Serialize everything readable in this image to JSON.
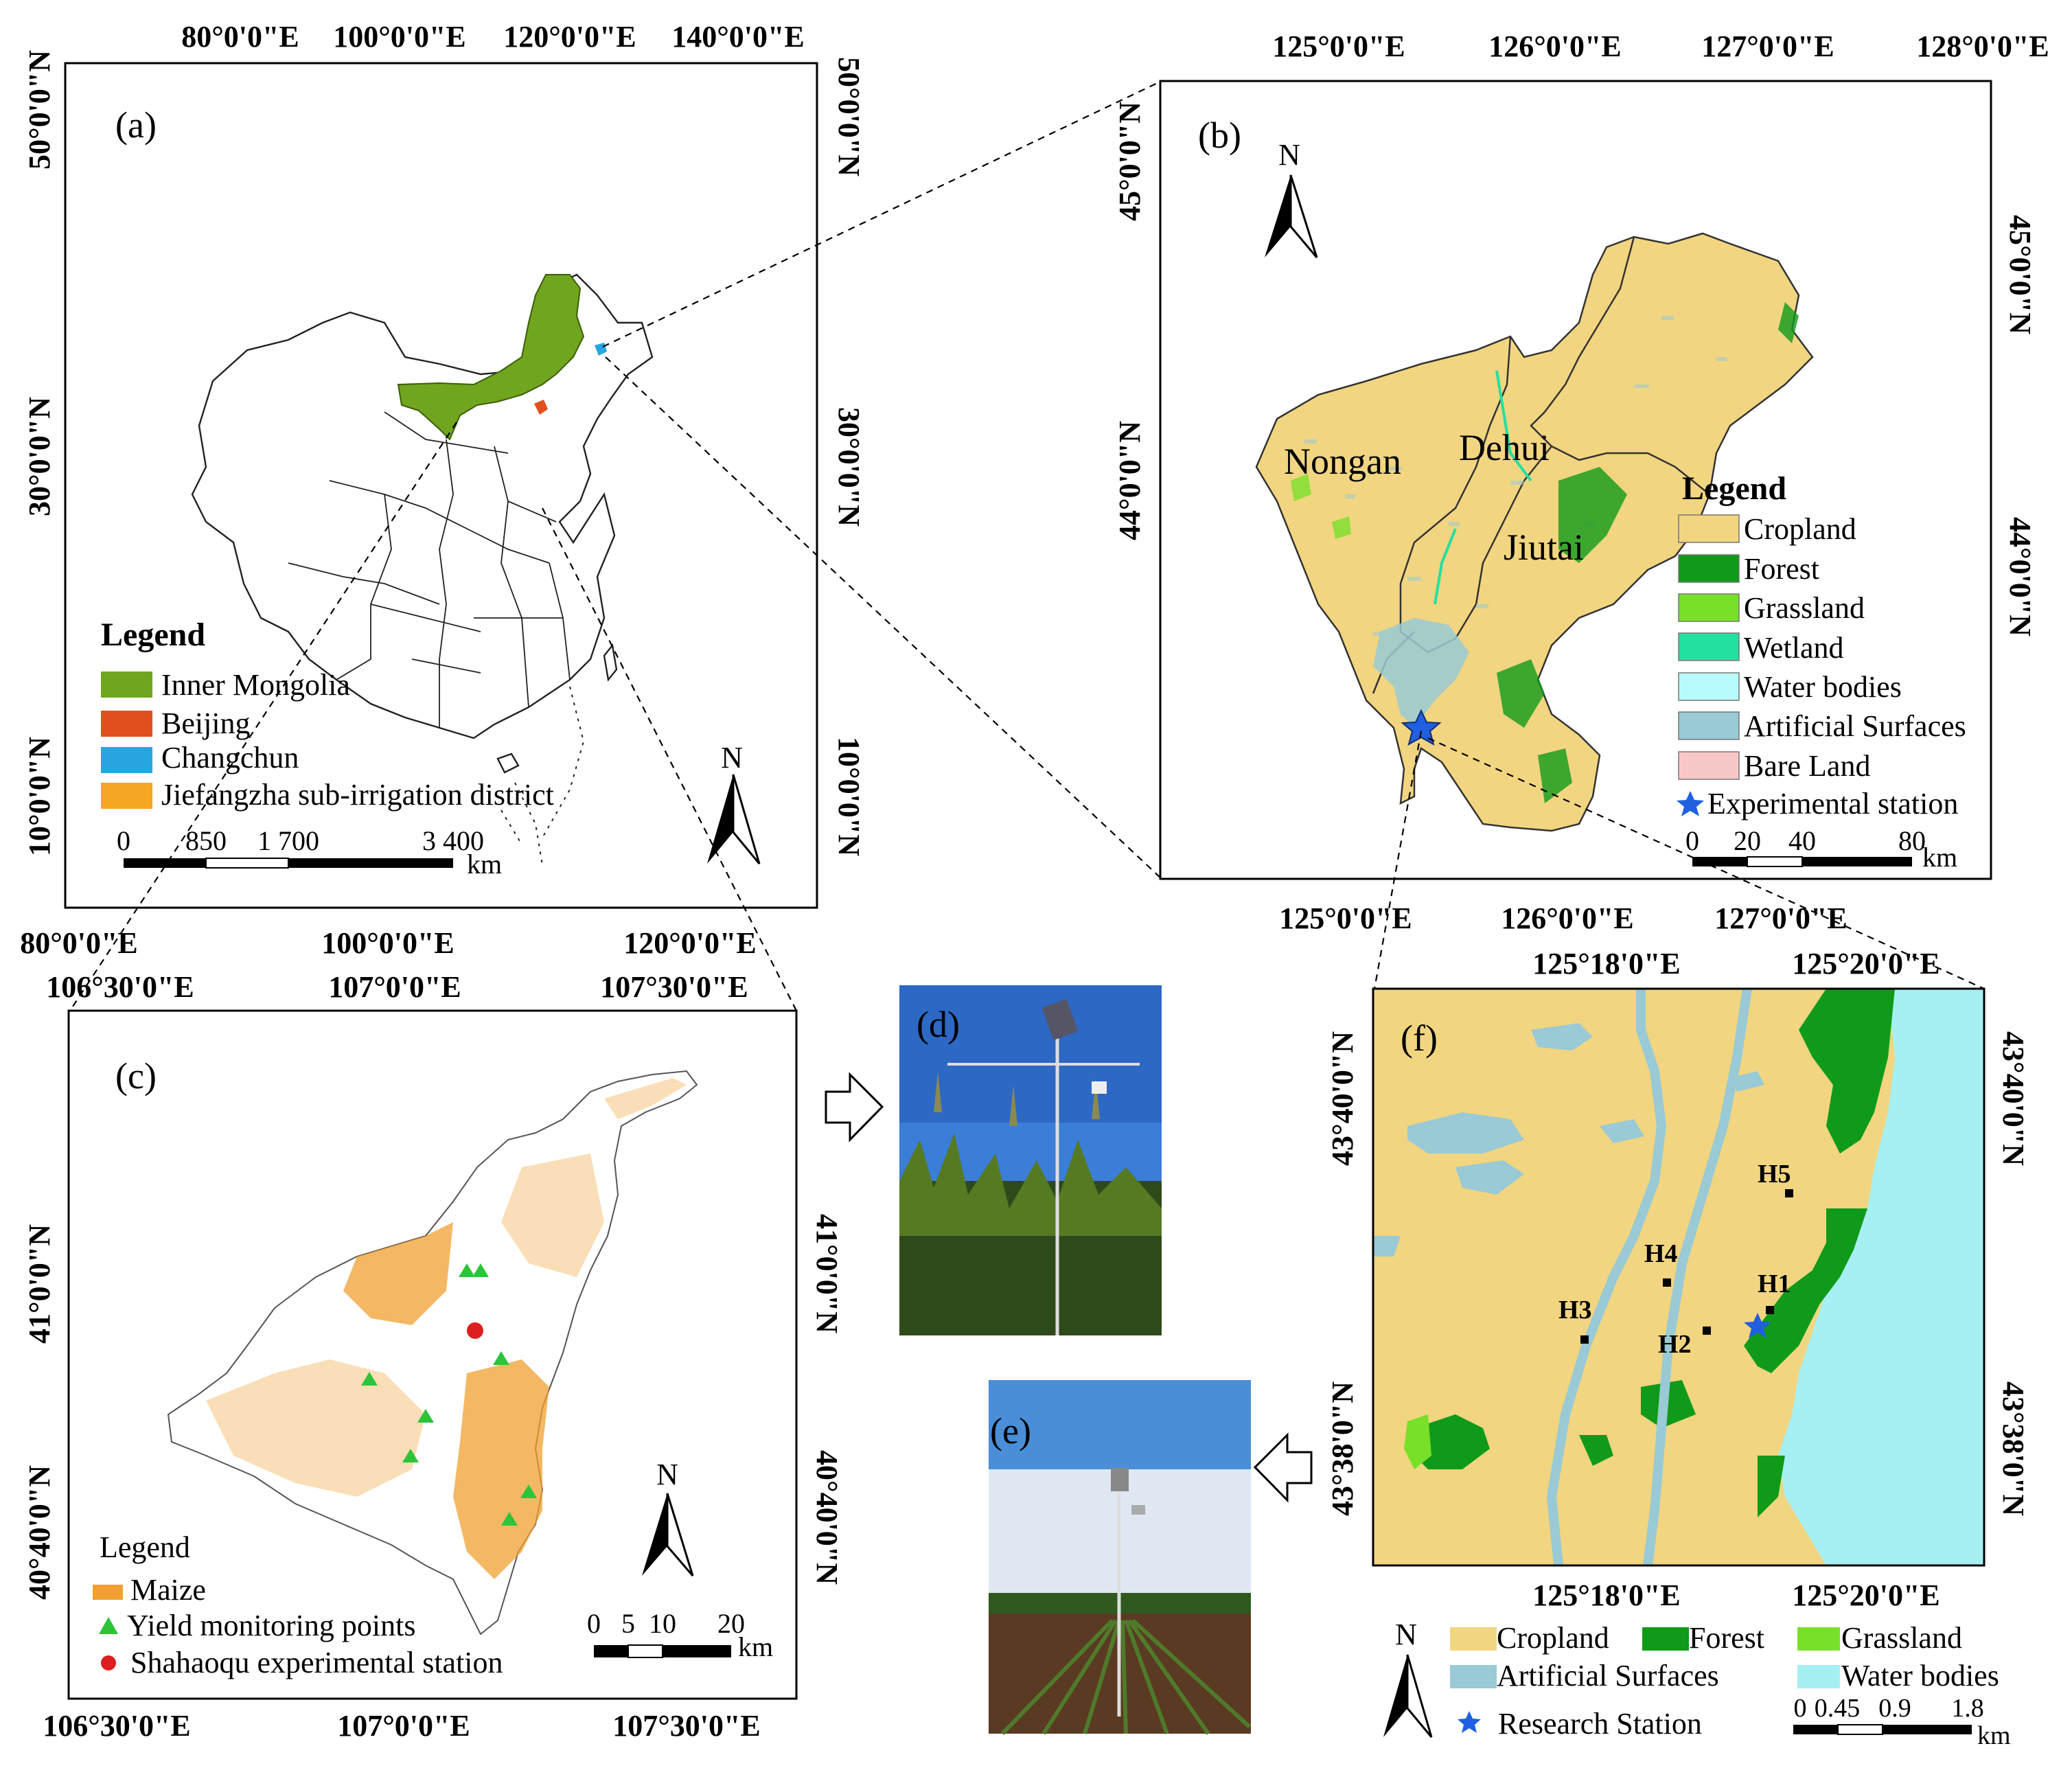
{
  "colors": {
    "inner_mongolia": "#70a51e",
    "beijing": "#e0501e",
    "changchun": "#26a5e1",
    "jiefangzha": "#f5a623",
    "cropland": "#f2d580",
    "forest": "#0f9a1a",
    "grassland": "#79e02a",
    "wetland": "#22e0a0",
    "water": "#b8fbfc",
    "artificial": "#99cad5",
    "bare": "#f8c8c8",
    "station_star": "#2060e0",
    "maize": "#f0a030",
    "yield_point": "#2ec43a",
    "shahaoqu": "#dd1f1f",
    "water_f": "#a6f0f4"
  },
  "panel_a": {
    "label": "(a)",
    "top_ticks": [
      "80°0'0\"E",
      "100°0'0\"E",
      "120°0'0\"E",
      "140°0'0\"E"
    ],
    "bottom_ticks": [
      "80°0'0\"E",
      "100°0'0\"E",
      "120°0'0\"E"
    ],
    "left_ticks": [
      "50°0'0\"N",
      "30°0'0\"N",
      "10°0'0\"N"
    ],
    "right_ticks": [
      "50°0'0\"N",
      "30°0'0\"N",
      "10°0'0\"N"
    ],
    "legend_title": "Legend",
    "legend_items": [
      "Inner Mongolia",
      "Beijing",
      "Changchun",
      "Jiefangzha sub-irrigation district"
    ],
    "legend_icons": [
      "inner-mongolia-swatch-icon",
      "beijing-swatch-icon",
      "changchun-swatch-icon",
      "jiefangzha-swatch-icon"
    ],
    "scalebar_labels": [
      "0",
      "850",
      "1 700",
      "3 400"
    ],
    "scalebar_unit": "km",
    "north": "N"
  },
  "panel_b": {
    "label": "(b)",
    "top_ticks": [
      "125°0'0\"E",
      "126°0'0\"E",
      "127°0'0\"E",
      "128°0'0\"E"
    ],
    "bottom_ticks": [
      "125°0'0\"E",
      "126°0'0\"E",
      "127°0'0\"E"
    ],
    "left_ticks": [
      "45°0'0\"N",
      "44°0'0\"N"
    ],
    "right_ticks": [
      "45°0'0\"N",
      "44°0'0\"N"
    ],
    "regions": [
      "Nongan",
      "Dehui",
      "Jiutai"
    ],
    "legend_title": "Legend",
    "legend_items": [
      "Cropland",
      "Forest",
      "Grassland",
      "Wetland",
      "Water bodies",
      "Artificial Surfaces",
      "Bare Land"
    ],
    "legend_icons": [
      "cropland-swatch-icon",
      "forest-swatch-icon",
      "grassland-swatch-icon",
      "wetland-swatch-icon",
      "water-swatch-icon",
      "artificial-swatch-icon",
      "bare-land-swatch-icon"
    ],
    "station_legend": "Experimental station",
    "scalebar_labels": [
      "0",
      "20",
      "40",
      "80"
    ],
    "scalebar_unit": "km",
    "north": "N"
  },
  "panel_c": {
    "label": "(c)",
    "top_ticks": [
      "106°30'0\"E",
      "107°0'0\"E",
      "107°30'0\"E"
    ],
    "bottom_ticks": [
      "106°30'0\"E",
      "107°0'0\"E",
      "107°30'0\"E"
    ],
    "left_ticks": [
      "41°0'0\"N",
      "40°40'0\"N"
    ],
    "right_ticks": [
      "41°0'0\"N",
      "40°40'0\"N"
    ],
    "legend_title": "Legend",
    "legend_items": [
      "Maize",
      "Yield monitoring points",
      "Shahaoqu experimental station"
    ],
    "legend_icons": [
      "maize-swatch-icon",
      "yield-point-triangle-icon",
      "station-dot-icon"
    ],
    "scalebar_labels": [
      "0",
      "5",
      "10",
      "20"
    ],
    "scalebar_unit": "km",
    "north": "N"
  },
  "panel_d": {
    "label": "(d)"
  },
  "panel_e": {
    "label": "(e)"
  },
  "panel_f": {
    "label": "(f)",
    "top_ticks": [
      "125°18'0\"E",
      "125°20'0\"E"
    ],
    "bottom_ticks": [
      "125°18'0\"E",
      "125°20'0\"E"
    ],
    "left_ticks": [
      "43°40'0\"N",
      "43°38'0\"N"
    ],
    "right_ticks": [
      "43°40'0\"N",
      "43°38'0\"N"
    ],
    "points": [
      "H1",
      "H2",
      "H3",
      "H4",
      "H5"
    ],
    "legend_items": [
      "Cropland",
      "Forest",
      "Grassland",
      "Artificial Surfaces",
      "Water bodies"
    ],
    "legend_icons": [
      "cropland-swatch-icon",
      "forest-swatch-icon",
      "grassland-swatch-icon",
      "artificial-swatch-icon",
      "water-swatch-icon"
    ],
    "station_legend": "Research Station",
    "scalebar_labels": [
      "0",
      "0.45",
      "0.9",
      "1.8"
    ],
    "scalebar_unit": "km",
    "north": "N"
  }
}
